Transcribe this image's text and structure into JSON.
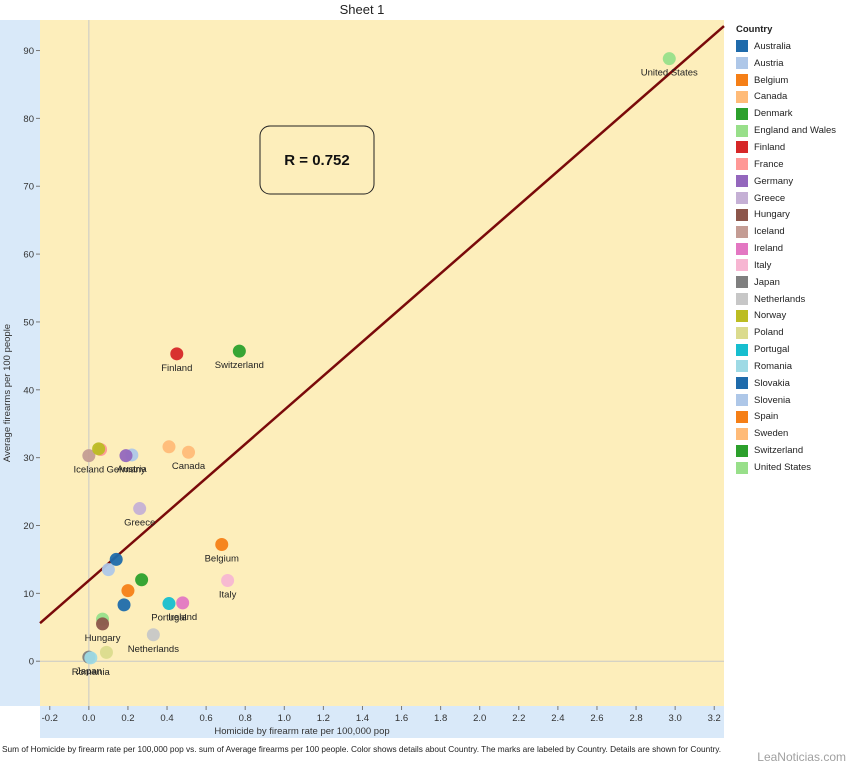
{
  "chart_data": {
    "type": "scatter",
    "title": "Sheet 1",
    "xlabel": "Homicide by firearm rate per 100,000 pop",
    "ylabel": "Average firearms per 100 people",
    "xlim": [
      -0.25,
      3.25
    ],
    "ylim": [
      -6.6,
      94.5
    ],
    "x_ticks": [
      -0.2,
      0.0,
      0.2,
      0.4,
      0.6,
      0.8,
      1.0,
      1.2,
      1.4,
      1.6,
      1.8,
      2.0,
      2.2,
      2.4,
      2.6,
      2.8,
      3.0,
      3.2
    ],
    "x_tick_labels": [
      "-0.2",
      "0.0",
      "0.2",
      "0.4",
      "0.6",
      "0.8",
      "1.0",
      "1.2",
      "1.4",
      "1.6",
      "1.8",
      "2.0",
      "2.2",
      "2.4",
      "2.6",
      "2.8",
      "3.0",
      "3.2"
    ],
    "y_ticks": [
      0,
      10,
      20,
      30,
      40,
      50,
      60,
      70,
      80,
      90
    ],
    "y_tick_labels": [
      "0",
      "10",
      "20",
      "30",
      "40",
      "50",
      "60",
      "70",
      "80",
      "90"
    ],
    "grid": false,
    "legend_position": "right",
    "legend_title": "Country",
    "annotation": "R = 0.752",
    "trendline": {
      "x": [
        -0.25,
        3.25
      ],
      "y": [
        5.6,
        93.6
      ],
      "color": "#7a0a0a"
    },
    "colors": {
      "plot_bg": "#fdeebb",
      "axis_bg": "#d9e9f9",
      "zero_line": "#c8c8c8"
    },
    "series": [
      {
        "name": "Australia",
        "color": "#1f6bab",
        "x": 0.14,
        "y": 15.0,
        "label": ""
      },
      {
        "name": "Austria",
        "color": "#aec7e8",
        "x": 0.22,
        "y": 30.4,
        "label": "Austria"
      },
      {
        "name": "Belgium",
        "color": "#f57f17",
        "x": 0.68,
        "y": 17.2,
        "label": "Belgium"
      },
      {
        "name": "Canada",
        "color": "#ffbb78",
        "x": 0.51,
        "y": 30.8,
        "label": "Canada"
      },
      {
        "name": "Denmark",
        "color": "#2ca02c",
        "x": 0.27,
        "y": 12.0,
        "label": ""
      },
      {
        "name": "England and Wales",
        "color": "#98df8a",
        "x": 0.07,
        "y": 6.2,
        "label": ""
      },
      {
        "name": "Finland",
        "color": "#d62728",
        "x": 0.45,
        "y": 45.3,
        "label": "Finland"
      },
      {
        "name": "France",
        "color": "#ff9896",
        "x": 0.06,
        "y": 31.2,
        "label": ""
      },
      {
        "name": "Germany",
        "color": "#9467bd",
        "x": 0.19,
        "y": 30.3,
        "label": "Germany"
      },
      {
        "name": "Greece",
        "color": "#c5b0d5",
        "x": 0.26,
        "y": 22.5,
        "label": "Greece"
      },
      {
        "name": "Hungary",
        "color": "#8c564b",
        "x": 0.07,
        "y": 5.5,
        "label": "Hungary"
      },
      {
        "name": "Iceland",
        "color": "#c49c94",
        "x": 0.0,
        "y": 30.3,
        "label": "Iceland"
      },
      {
        "name": "Ireland",
        "color": "#e377c2",
        "x": 0.48,
        "y": 8.6,
        "label": "Ireland"
      },
      {
        "name": "Italy",
        "color": "#f7b6d2",
        "x": 0.71,
        "y": 11.9,
        "label": "Italy"
      },
      {
        "name": "Japan",
        "color": "#7f7f7f",
        "x": 0.0,
        "y": 0.6,
        "label": "Japan"
      },
      {
        "name": "Netherlands",
        "color": "#c7c7c7",
        "x": 0.33,
        "y": 3.9,
        "label": "Netherlands"
      },
      {
        "name": "Norway",
        "color": "#bcbd22",
        "x": 0.05,
        "y": 31.3,
        "label": ""
      },
      {
        "name": "Poland",
        "color": "#dbdb8d",
        "x": 0.09,
        "y": 1.3,
        "label": ""
      },
      {
        "name": "Portugal",
        "color": "#17becf",
        "x": 0.41,
        "y": 8.5,
        "label": "Portugal"
      },
      {
        "name": "Romania",
        "color": "#9edae5",
        "x": 0.01,
        "y": 0.5,
        "label": "Romania"
      },
      {
        "name": "Slovakia",
        "color": "#1f6bab",
        "x": 0.18,
        "y": 8.3,
        "label": ""
      },
      {
        "name": "Slovenia",
        "color": "#aec7e8",
        "x": 0.1,
        "y": 13.5,
        "label": ""
      },
      {
        "name": "Spain",
        "color": "#f57f17",
        "x": 0.2,
        "y": 10.4,
        "label": ""
      },
      {
        "name": "Sweden",
        "color": "#ffbb78",
        "x": 0.41,
        "y": 31.6,
        "label": ""
      },
      {
        "name": "Switzerland",
        "color": "#2ca02c",
        "x": 0.77,
        "y": 45.7,
        "label": "Switzerland"
      },
      {
        "name": "United States",
        "color": "#98df8a",
        "x": 2.97,
        "y": 88.8,
        "label": "United States"
      }
    ]
  },
  "caption": "Sum of Homicide by firearm rate per 100,000 pop vs. sum of Average firearms per 100 people.  Color shows details about Country.  The marks are labeled by Country.  Details are shown for Country.",
  "watermark": "LeaNoticias.com"
}
